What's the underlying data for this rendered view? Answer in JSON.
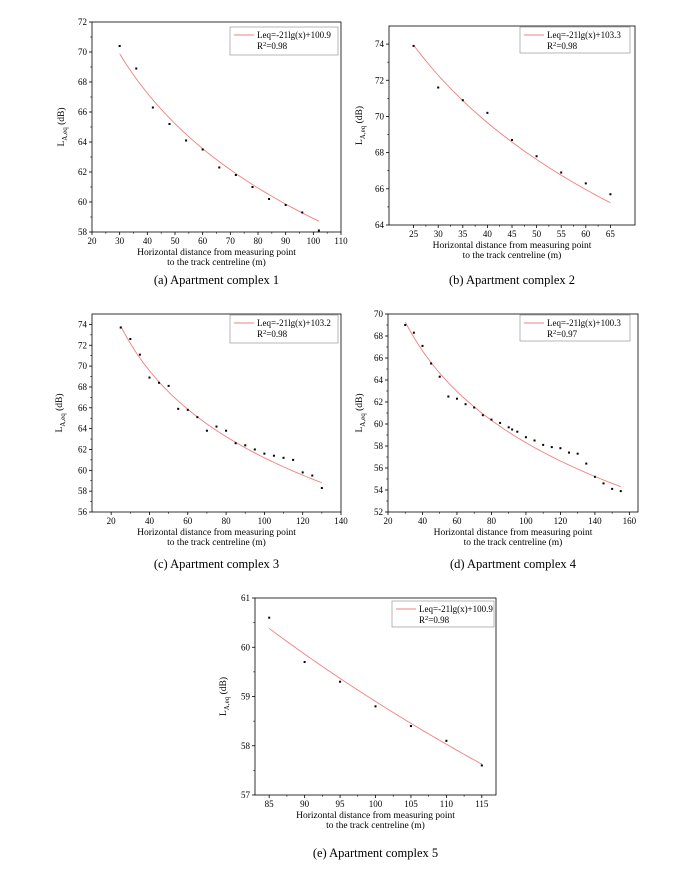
{
  "chart_data": [
    {
      "type": "scatter",
      "caption": "(a) Apartment complex 1",
      "xlabel": [
        "Horizontal distance from measuring point",
        "to the track centreline (m)"
      ],
      "ylabel": "L",
      "ylabel_sub": "A,eq",
      "ylabel_unit": " (dB)",
      "xlim": [
        20,
        110
      ],
      "ylim": [
        58,
        72
      ],
      "xticks": [
        20,
        30,
        40,
        50,
        60,
        70,
        80,
        90,
        100,
        110
      ],
      "yticks": [
        58,
        60,
        62,
        64,
        66,
        68,
        70,
        72
      ],
      "legend": {
        "equation": "Leq=-21lg(x)+100.9",
        "r2_label": "R",
        "r2_value": "=0.98",
        "position": "top-right"
      },
      "fit": {
        "a": -21,
        "b": 100.9
      },
      "fit_range": [
        30,
        102
      ],
      "series": [
        {
          "x": [
            30,
            36,
            42,
            48,
            54,
            60,
            66,
            72,
            78,
            84,
            90,
            96,
            102
          ],
          "y": [
            70.4,
            68.9,
            66.3,
            65.2,
            64.1,
            63.5,
            62.3,
            61.8,
            61.0,
            60.2,
            59.8,
            59.3,
            58.1
          ]
        }
      ]
    },
    {
      "type": "scatter",
      "caption": "(b) Apartment complex 2",
      "xlabel": [
        "Horizontal distance from measuring point",
        "to the track centreline (m)"
      ],
      "ylabel": "L",
      "ylabel_sub": "A,eq",
      "ylabel_unit": " (dB)",
      "xlim": [
        20,
        70
      ],
      "ylim": [
        64,
        75
      ],
      "xticks": [
        25,
        30,
        35,
        40,
        45,
        50,
        55,
        60,
        65
      ],
      "yticks": [
        64,
        66,
        68,
        70,
        72,
        74
      ],
      "legend": {
        "equation": "Leq=-21lg(x)+103.3",
        "r2_label": "R",
        "r2_value": "=0.98",
        "position": "top-right"
      },
      "fit": {
        "a": -21,
        "b": 103.3
      },
      "fit_range": [
        25,
        65
      ],
      "series": [
        {
          "x": [
            25,
            30,
            35,
            40,
            45,
            50,
            55,
            60,
            65
          ],
          "y": [
            73.9,
            71.6,
            70.9,
            70.2,
            68.7,
            67.8,
            66.9,
            66.3,
            65.7
          ]
        }
      ]
    },
    {
      "type": "scatter",
      "caption": "(c) Apartment complex 3",
      "xlabel": [
        "Horizontal distance from measuring point",
        "to the track centreline (m)"
      ],
      "ylabel": "L",
      "ylabel_sub": "A,eq",
      "ylabel_unit": " (dB)",
      "xlim": [
        10,
        140
      ],
      "ylim": [
        56,
        75
      ],
      "xticks": [
        20,
        40,
        60,
        80,
        100,
        120,
        140
      ],
      "yticks": [
        56,
        58,
        60,
        62,
        64,
        66,
        68,
        70,
        72,
        74
      ],
      "legend": {
        "equation": "Leq=-21lg(x)+103.2",
        "r2_label": "R",
        "r2_value": "=0.98",
        "position": "top-right"
      },
      "fit": {
        "a": -21,
        "b": 103.2
      },
      "fit_range": [
        25,
        130
      ],
      "series": [
        {
          "x": [
            25,
            30,
            35,
            40,
            45,
            50,
            55,
            60,
            65,
            70,
            75,
            80,
            85,
            90,
            95,
            100,
            105,
            110,
            115,
            120,
            125,
            130
          ],
          "y": [
            73.7,
            72.6,
            71.1,
            68.9,
            68.4,
            68.1,
            65.9,
            65.8,
            65.1,
            63.8,
            64.2,
            63.8,
            62.6,
            62.4,
            62.0,
            61.6,
            61.4,
            61.2,
            61.0,
            59.8,
            59.5,
            58.3
          ]
        }
      ]
    },
    {
      "type": "scatter",
      "caption": "(d) Apartment complex 4",
      "xlabel": [
        "Horizontal distance from measuring point",
        "to the track centreline (m)"
      ],
      "ylabel": "L",
      "ylabel_sub": "A,eq",
      "ylabel_unit": " (dB)",
      "xlim": [
        20,
        165
      ],
      "ylim": [
        52,
        70
      ],
      "xticks": [
        20,
        40,
        60,
        80,
        100,
        120,
        140,
        160
      ],
      "yticks": [
        52,
        54,
        56,
        58,
        60,
        62,
        64,
        66,
        68,
        70
      ],
      "legend": {
        "equation": "Leq=-21lg(x)+100.3",
        "r2_label": "R",
        "r2_value": "=0.97",
        "position": "top-right"
      },
      "fit": {
        "a": -21,
        "b": 100.3
      },
      "fit_range": [
        30,
        155
      ],
      "series": [
        {
          "x": [
            30,
            35,
            40,
            45,
            50,
            55,
            60,
            65,
            70,
            75,
            80,
            85,
            90,
            92,
            95,
            100,
            105,
            110,
            115,
            120,
            125,
            130,
            135,
            140,
            145,
            150,
            155
          ],
          "y": [
            69.0,
            68.3,
            67.1,
            65.5,
            64.3,
            62.5,
            62.3,
            61.8,
            61.5,
            60.8,
            60.4,
            60.1,
            59.7,
            59.5,
            59.3,
            58.8,
            58.5,
            58.1,
            57.9,
            57.8,
            57.4,
            57.3,
            56.4,
            55.2,
            54.6,
            54.1,
            53.9
          ]
        }
      ]
    },
    {
      "type": "scatter",
      "caption": "(e) Apartment complex 5",
      "xlabel": [
        "Horizontal distance from measuring point",
        "to the track centreline (m)"
      ],
      "ylabel": "L",
      "ylabel_sub": "A,eq",
      "ylabel_unit": " (dB)",
      "xlim": [
        83,
        117
      ],
      "ylim": [
        57,
        61
      ],
      "xticks": [
        85,
        90,
        95,
        100,
        105,
        110,
        115
      ],
      "yticks": [
        57,
        58,
        59,
        60,
        61
      ],
      "legend": {
        "equation": "Leq=-21lg(x)+100.9",
        "r2_label": "R",
        "r2_value": "=0.98",
        "position": "top-right"
      },
      "fit": {
        "a": -21,
        "b": 100.9
      },
      "fit_range": [
        85,
        115
      ],
      "series": [
        {
          "x": [
            85,
            90,
            95,
            100,
            105,
            110,
            115
          ],
          "y": [
            60.6,
            59.7,
            59.3,
            58.8,
            58.4,
            58.1,
            57.6
          ]
        }
      ]
    }
  ],
  "colors": {
    "fit_line": "#f08080",
    "points": "#000000",
    "axes": "#000000"
  }
}
